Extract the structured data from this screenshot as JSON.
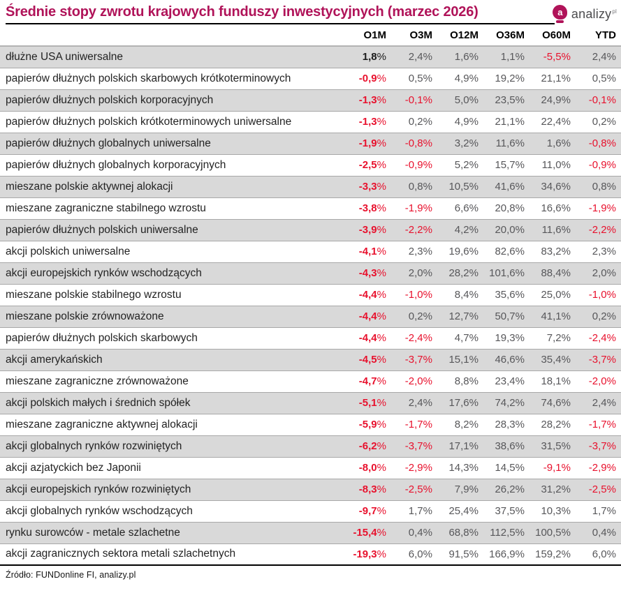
{
  "header": {
    "logo": {
      "icon_letter": "a",
      "text": "analizy",
      "sup": "pl"
    }
  },
  "chart_data": {
    "type": "table",
    "title": "Średnie stopy zwrotu krajowych funduszy inwestycyjnych (marzec 2026)",
    "columns": [
      "O1M",
      "O3M",
      "O12M",
      "O36M",
      "O60M",
      "YTD"
    ],
    "rows": [
      {
        "label": "dłużne USA uniwersalne",
        "values": [
          "1,8%",
          "2,4%",
          "1,6%",
          "1,1%",
          "-5,5%",
          "2,4%"
        ]
      },
      {
        "label": "papierów dłużnych polskich skarbowych krótkoterminowych",
        "values": [
          "-0,9%",
          "0,5%",
          "4,9%",
          "19,2%",
          "21,1%",
          "0,5%"
        ]
      },
      {
        "label": "papierów dłużnych polskich korporacyjnych",
        "values": [
          "-1,3%",
          "-0,1%",
          "5,0%",
          "23,5%",
          "24,9%",
          "-0,1%"
        ]
      },
      {
        "label": "papierów dłużnych polskich krótkoterminowych uniwersalne",
        "values": [
          "-1,3%",
          "0,2%",
          "4,9%",
          "21,1%",
          "22,4%",
          "0,2%"
        ]
      },
      {
        "label": "papierów dłużnych globalnych uniwersalne",
        "values": [
          "-1,9%",
          "-0,8%",
          "3,2%",
          "11,6%",
          "1,6%",
          "-0,8%"
        ]
      },
      {
        "label": "papierów dłużnych globalnych korporacyjnych",
        "values": [
          "-2,5%",
          "-0,9%",
          "5,2%",
          "15,7%",
          "11,0%",
          "-0,9%"
        ]
      },
      {
        "label": "mieszane polskie aktywnej alokacji",
        "values": [
          "-3,3%",
          "0,8%",
          "10,5%",
          "41,6%",
          "34,6%",
          "0,8%"
        ]
      },
      {
        "label": "mieszane zagraniczne stabilnego wzrostu",
        "values": [
          "-3,8%",
          "-1,9%",
          "6,6%",
          "20,8%",
          "16,6%",
          "-1,9%"
        ]
      },
      {
        "label": "papierów dłużnych polskich uniwersalne",
        "values": [
          "-3,9%",
          "-2,2%",
          "4,2%",
          "20,0%",
          "11,6%",
          "-2,2%"
        ]
      },
      {
        "label": "akcji polskich uniwersalne",
        "values": [
          "-4,1%",
          "2,3%",
          "19,6%",
          "82,6%",
          "83,2%",
          "2,3%"
        ]
      },
      {
        "label": "akcji europejskich rynków wschodzących",
        "values": [
          "-4,3%",
          "2,0%",
          "28,2%",
          "101,6%",
          "88,4%",
          "2,0%"
        ]
      },
      {
        "label": "mieszane polskie stabilnego wzrostu",
        "values": [
          "-4,4%",
          "-1,0%",
          "8,4%",
          "35,6%",
          "25,0%",
          "-1,0%"
        ]
      },
      {
        "label": "mieszane polskie zrównoważone",
        "values": [
          "-4,4%",
          "0,2%",
          "12,7%",
          "50,7%",
          "41,1%",
          "0,2%"
        ]
      },
      {
        "label": "papierów dłużnych polskich skarbowych",
        "values": [
          "-4,4%",
          "-2,4%",
          "4,7%",
          "19,3%",
          "7,2%",
          "-2,4%"
        ]
      },
      {
        "label": "akcji amerykańskich",
        "values": [
          "-4,5%",
          "-3,7%",
          "15,1%",
          "46,6%",
          "35,4%",
          "-3,7%"
        ]
      },
      {
        "label": "mieszane zagraniczne zrównoważone",
        "values": [
          "-4,7%",
          "-2,0%",
          "8,8%",
          "23,4%",
          "18,1%",
          "-2,0%"
        ]
      },
      {
        "label": "akcji polskich małych i średnich spółek",
        "values": [
          "-5,1%",
          "2,4%",
          "17,6%",
          "74,2%",
          "74,6%",
          "2,4%"
        ]
      },
      {
        "label": "mieszane zagraniczne aktywnej alokacji",
        "values": [
          "-5,9%",
          "-1,7%",
          "8,2%",
          "28,3%",
          "28,2%",
          "-1,7%"
        ]
      },
      {
        "label": "akcji globalnych rynków rozwiniętych",
        "values": [
          "-6,2%",
          "-3,7%",
          "17,1%",
          "38,6%",
          "31,5%",
          "-3,7%"
        ]
      },
      {
        "label": "akcji azjatyckich bez Japonii",
        "values": [
          "-8,0%",
          "-2,9%",
          "14,3%",
          "14,5%",
          "-9,1%",
          "-2,9%"
        ]
      },
      {
        "label": "akcji europejskich rynków rozwiniętych",
        "values": [
          "-8,3%",
          "-2,5%",
          "7,9%",
          "26,2%",
          "31,2%",
          "-2,5%"
        ]
      },
      {
        "label": "akcji globalnych rynków wschodzących",
        "values": [
          "-9,7%",
          "1,7%",
          "25,4%",
          "37,5%",
          "10,3%",
          "1,7%"
        ]
      },
      {
        "label": "rynku surowców - metale szlachetne",
        "values": [
          "-15,4%",
          "0,4%",
          "68,8%",
          "112,5%",
          "100,5%",
          "0,4%"
        ]
      },
      {
        "label": "akcji zagranicznych sektora metali szlachetnych",
        "values": [
          "-19,3%",
          "6,0%",
          "91,5%",
          "166,9%",
          "159,2%",
          "6,0%"
        ]
      }
    ],
    "source": "Źródło: FUNDonline FI, analizy.pl",
    "layout_hints": {
      "striped_rows": "odd rows gray",
      "first_value_column_bold": true,
      "negative_values_red": true
    }
  },
  "colors": {
    "accent": "#b01359",
    "negative": "#e8112d",
    "stripe": "#d9d9d9",
    "number_text": "#57575a",
    "label_text": "#232323"
  }
}
